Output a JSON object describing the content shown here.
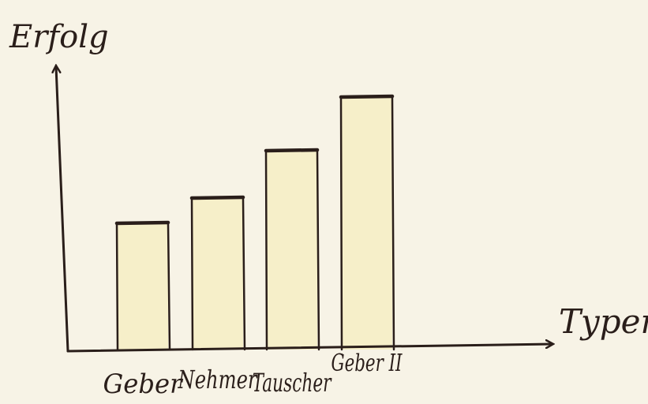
{
  "chart_data": {
    "type": "bar",
    "title": "",
    "xlabel": "Typen",
    "ylabel": "Erfolg",
    "categories": [
      "Geber",
      "Nehmer",
      "Tauscher",
      "Geber II"
    ],
    "values": [
      40,
      48,
      63,
      80
    ],
    "ylim": [
      0,
      100
    ],
    "grid": false,
    "legend": "none"
  },
  "colors": {
    "background": "#f7f3e6",
    "bar_fill": "#f6efc9",
    "ink": "#2a1e1a"
  }
}
